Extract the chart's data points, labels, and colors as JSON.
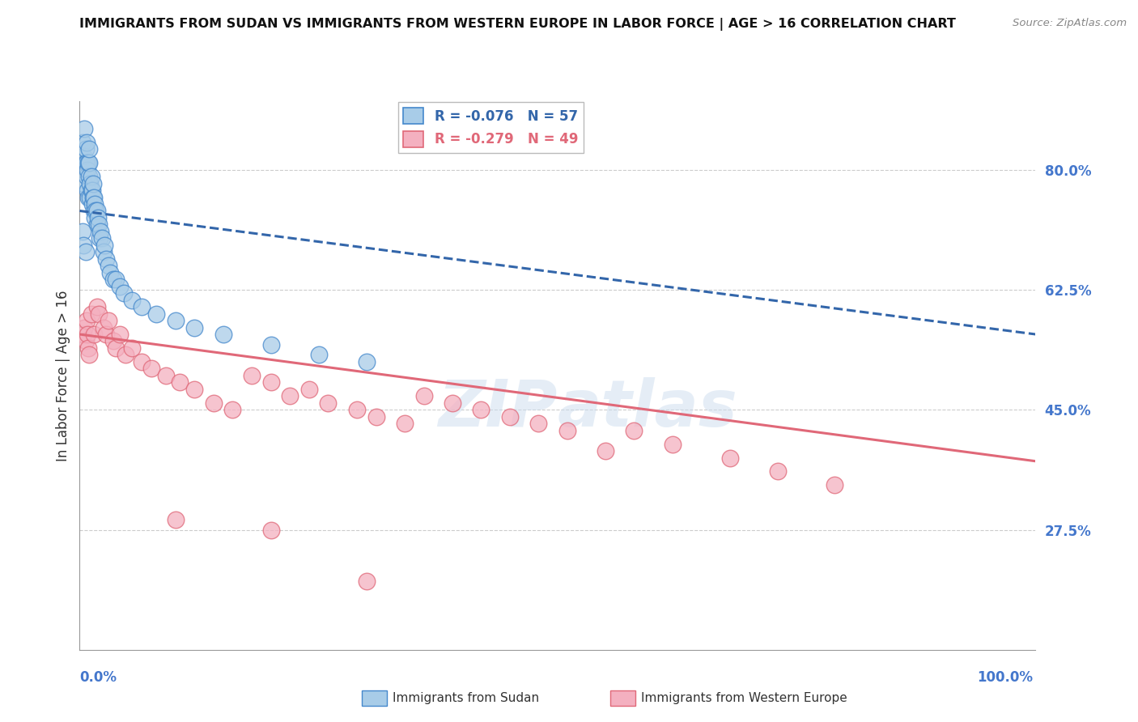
{
  "title": "IMMIGRANTS FROM SUDAN VS IMMIGRANTS FROM WESTERN EUROPE IN LABOR FORCE | AGE > 16 CORRELATION CHART",
  "source": "Source: ZipAtlas.com",
  "ylabel": "In Labor Force | Age > 16",
  "y_tick_labels": [
    "27.5%",
    "45.0%",
    "62.5%",
    "80.0%"
  ],
  "y_tick_values": [
    0.275,
    0.45,
    0.625,
    0.8
  ],
  "xlim": [
    0.0,
    1.0
  ],
  "ylim": [
    0.1,
    0.9
  ],
  "legend_r1": "-0.076",
  "legend_n1": "57",
  "legend_r2": "-0.279",
  "legend_n2": "49",
  "color_blue_fill": "#a8cce8",
  "color_blue_edge": "#4488cc",
  "color_pink_fill": "#f4b0c0",
  "color_pink_edge": "#e06878",
  "color_blue_line": "#3366aa",
  "color_pink_line": "#e06878",
  "blue_scatter_x": [
    0.003,
    0.004,
    0.005,
    0.005,
    0.006,
    0.006,
    0.007,
    0.007,
    0.007,
    0.008,
    0.008,
    0.009,
    0.009,
    0.01,
    0.01,
    0.01,
    0.011,
    0.011,
    0.012,
    0.012,
    0.013,
    0.013,
    0.014,
    0.014,
    0.015,
    0.015,
    0.016,
    0.016,
    0.017,
    0.018,
    0.018,
    0.019,
    0.02,
    0.021,
    0.022,
    0.023,
    0.025,
    0.026,
    0.028,
    0.03,
    0.032,
    0.035,
    0.038,
    0.042,
    0.046,
    0.055,
    0.065,
    0.08,
    0.1,
    0.12,
    0.15,
    0.2,
    0.25,
    0.3,
    0.003,
    0.004,
    0.006
  ],
  "blue_scatter_y": [
    0.84,
    0.82,
    0.86,
    0.78,
    0.81,
    0.83,
    0.79,
    0.81,
    0.84,
    0.77,
    0.8,
    0.81,
    0.76,
    0.79,
    0.81,
    0.83,
    0.76,
    0.78,
    0.77,
    0.79,
    0.75,
    0.77,
    0.76,
    0.78,
    0.74,
    0.76,
    0.73,
    0.75,
    0.74,
    0.72,
    0.74,
    0.73,
    0.72,
    0.7,
    0.71,
    0.7,
    0.68,
    0.69,
    0.67,
    0.66,
    0.65,
    0.64,
    0.64,
    0.63,
    0.62,
    0.61,
    0.6,
    0.59,
    0.58,
    0.57,
    0.56,
    0.545,
    0.53,
    0.52,
    0.71,
    0.69,
    0.68
  ],
  "pink_scatter_x": [
    0.004,
    0.005,
    0.006,
    0.007,
    0.008,
    0.009,
    0.01,
    0.012,
    0.015,
    0.018,
    0.02,
    0.025,
    0.028,
    0.03,
    0.035,
    0.038,
    0.042,
    0.048,
    0.055,
    0.065,
    0.075,
    0.09,
    0.105,
    0.12,
    0.14,
    0.16,
    0.18,
    0.2,
    0.22,
    0.24,
    0.26,
    0.29,
    0.31,
    0.34,
    0.36,
    0.39,
    0.42,
    0.45,
    0.48,
    0.51,
    0.55,
    0.58,
    0.62,
    0.68,
    0.73,
    0.79,
    0.1,
    0.2,
    0.3
  ],
  "pink_scatter_y": [
    0.56,
    0.57,
    0.55,
    0.58,
    0.56,
    0.54,
    0.53,
    0.59,
    0.56,
    0.6,
    0.59,
    0.57,
    0.56,
    0.58,
    0.55,
    0.54,
    0.56,
    0.53,
    0.54,
    0.52,
    0.51,
    0.5,
    0.49,
    0.48,
    0.46,
    0.45,
    0.5,
    0.49,
    0.47,
    0.48,
    0.46,
    0.45,
    0.44,
    0.43,
    0.47,
    0.46,
    0.45,
    0.44,
    0.43,
    0.42,
    0.39,
    0.42,
    0.4,
    0.38,
    0.36,
    0.34,
    0.29,
    0.275,
    0.2
  ],
  "blue_line_y_start": 0.74,
  "blue_line_y_end": 0.56,
  "pink_line_y_start": 0.56,
  "pink_line_y_end": 0.375
}
